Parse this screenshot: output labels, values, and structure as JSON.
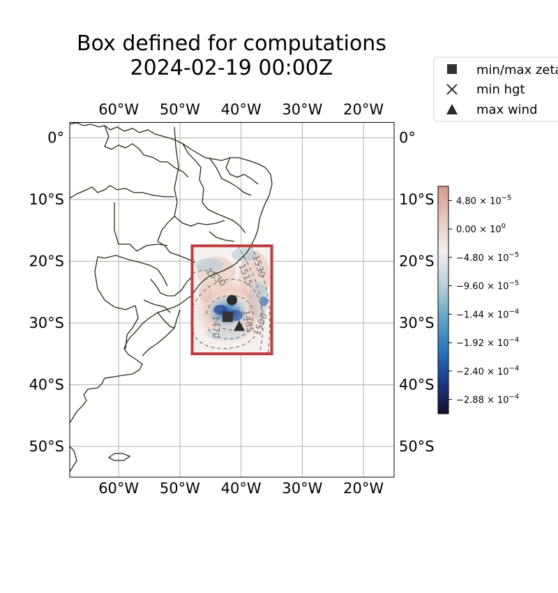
{
  "title": {
    "line1": "Box defined for computations",
    "line2": "2024-02-19 00:00Z"
  },
  "map": {
    "projection": "PlateCarree",
    "lon_range": [
      -68,
      -15
    ],
    "lat_range": [
      -55,
      2.5
    ],
    "grid": true,
    "lon_ticks": [
      {
        "value": -60,
        "label": "60°W"
      },
      {
        "value": -50,
        "label": "50°W"
      },
      {
        "value": -40,
        "label": "40°W"
      },
      {
        "value": -30,
        "label": "30°W"
      },
      {
        "value": -20,
        "label": "20°W"
      }
    ],
    "lat_ticks": [
      {
        "value": 0,
        "label": "0°"
      },
      {
        "value": -10,
        "label": "10°S"
      },
      {
        "value": -20,
        "label": "20°S"
      },
      {
        "value": -30,
        "label": "30°S"
      },
      {
        "value": -40,
        "label": "40°S"
      },
      {
        "value": -50,
        "label": "50°S"
      }
    ],
    "coastline_color": "#1f2a14",
    "box": {
      "lon_min": -48,
      "lon_max": -35,
      "lat_min": -35,
      "lat_max": -17.5,
      "color": "#c0393b"
    }
  },
  "markers": {
    "min_max_zeta": {
      "lon": -42.2,
      "lat": -29.0,
      "color": "#333333"
    },
    "min_hgt": {
      "lon": -42.7,
      "lat": -29.0
    },
    "max_wind": {
      "lon": -40.3,
      "lat": -30.5
    },
    "center": {
      "lon": -41.5,
      "lat": -26.3
    }
  },
  "contours": {
    "labels": [
      "1515",
      "1530",
      "1530",
      "1470",
      "1485",
      "1500"
    ],
    "color": "#7a7a7a"
  },
  "legend": {
    "position": "top-right",
    "entries": [
      {
        "label": "min/max zeta",
        "marker": "square"
      },
      {
        "label": "min hgt",
        "marker": "x"
      },
      {
        "label": "max wind",
        "marker": "triangle"
      }
    ]
  },
  "colorbar": {
    "ticks": [
      {
        "value": 4.8e-05,
        "mant": "4.80",
        "exp": "−5"
      },
      {
        "value": 0.0,
        "mant": "0.00",
        "exp": "0"
      },
      {
        "value": -4.8e-05,
        "mant": "−4.80",
        "exp": "−5"
      },
      {
        "value": -9.6e-05,
        "mant": "−9.60",
        "exp": "−5"
      },
      {
        "value": -0.000144,
        "mant": "−1.44",
        "exp": "−4"
      },
      {
        "value": -0.000192,
        "mant": "−1.92",
        "exp": "−4"
      },
      {
        "value": -0.00024,
        "mant": "−2.40",
        "exp": "−4"
      },
      {
        "value": -0.000288,
        "mant": "−2.88",
        "exp": "−4"
      }
    ],
    "range": [
      -0.000312,
      7.2e-05
    ],
    "colors": [
      "#12102e",
      "#1c3a8c",
      "#2b78c0",
      "#6aa8c7",
      "#b9d2de",
      "#f4eeec",
      "#e8c9bd",
      "#d39a8c"
    ]
  }
}
